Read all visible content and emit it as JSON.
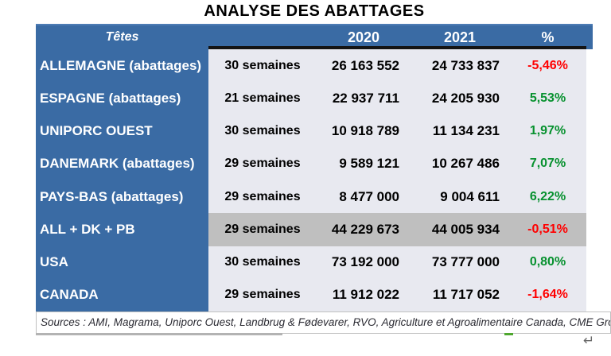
{
  "title": "ANALYSE DES ABATTAGES",
  "colors": {
    "header_blue": "#3a6ba4",
    "body_background": "#e8e9f0",
    "highlight_gray": "#bfbfbf",
    "negative_red": "#ff0000",
    "positive_green": "#07912f",
    "border_black": "#141414"
  },
  "table": {
    "header": {
      "tetes": "Têtes",
      "weeks": "",
      "y2020": "2020",
      "y2021": "2021",
      "pct": "%"
    },
    "rows": [
      {
        "label": "ALLEMAGNE (abattages)",
        "weeks": "30 semaines",
        "v2020": "26 163 552",
        "v2021": "24 733 837",
        "pct": "-5,46%",
        "trend": "neg",
        "rowClass": ""
      },
      {
        "label": "ESPAGNE (abattages)",
        "weeks": "21 semaines",
        "v2020": "22 937 711",
        "v2021": "24 205 930",
        "pct": "5,53%",
        "trend": "pos",
        "rowClass": ""
      },
      {
        "label": "UNIPORC OUEST",
        "weeks": "30 semaines",
        "v2020": "10 918 789",
        "v2021": "11 134 231",
        "pct": "1,97%",
        "trend": "pos",
        "rowClass": ""
      },
      {
        "label": "DANEMARK (abattages)",
        "weeks": "29 semaines",
        "v2020": "9 589 121",
        "v2021": "10 267 486",
        "pct": "7,07%",
        "trend": "pos",
        "rowClass": ""
      },
      {
        "label": "PAYS-BAS (abattages)",
        "weeks": "29 semaines",
        "v2020": "8 477 000",
        "v2021": "9 004 611",
        "pct": "6,22%",
        "trend": "pos",
        "rowClass": ""
      },
      {
        "label": "ALL + DK + PB",
        "weeks": "29 semaines",
        "v2020": "44 229 673",
        "v2021": "44 005 934",
        "pct": "-0,51%",
        "trend": "neg",
        "rowClass": "highlight"
      },
      {
        "label": "USA",
        "weeks": "30 semaines",
        "v2020": "73 192 000",
        "v2021": "73 777 000",
        "pct": "0,80%",
        "trend": "pos",
        "rowClass": ""
      },
      {
        "label": "CANADA",
        "weeks": "29 semaines",
        "v2020": "11 912 022",
        "v2021": "11 717 052",
        "pct": "-1,64%",
        "trend": "neg",
        "rowClass": ""
      }
    ]
  },
  "footer": {
    "sources": "Sources : AMI, Magrama, Uniporc Ouest, Landbrug & Fødevarer, RVO, Agriculture et Agroalimentaire Canada, CME Grou",
    "return_symbol": "↵"
  }
}
